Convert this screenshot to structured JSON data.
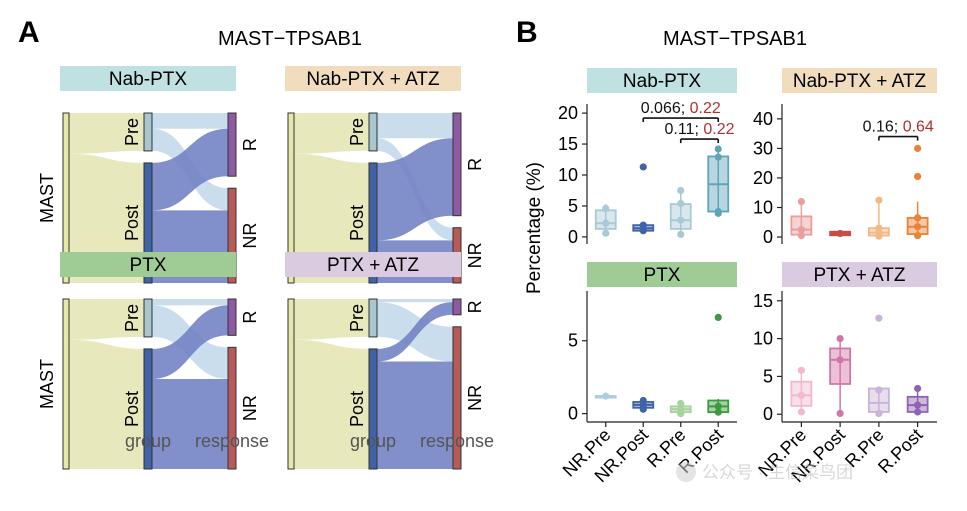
{
  "figure": {
    "panel_a_letter": "A",
    "panel_b_letter": "B",
    "panel_a_title": "MAST−TPSAB1",
    "panel_b_title": "MAST−TPSAB1",
    "watermark": "公众号 · 生信菜鸟团"
  },
  "colors": {
    "nabptx": "#bfe1e2",
    "nabptx_atz": "#f1ddbe",
    "ptx": "#9fcc94",
    "ptx_atz": "#dacbe0",
    "mast_node": "#e6e8a8",
    "pre_node": "#a9c6cf",
    "post_node": "#3f63a6",
    "r_node": "#8d5aa3",
    "nr_node": "#b85a58",
    "flow_mast": "#e5e6b6",
    "flow_pre": "#c4d9ea",
    "flow_post": "#7383c4",
    "pval_black": "#111111",
    "pval_red": "#b0302f"
  },
  "chart_data": [
    {
      "type": "sankey",
      "title": "Nab-PTX",
      "axes": [
        "group",
        "response"
      ],
      "source_label": "MAST",
      "group_nodes": [
        {
          "label": "Pre",
          "size": 0.24
        },
        {
          "label": "Post",
          "size": 0.76
        }
      ],
      "response_nodes": [
        {
          "label": "R",
          "size": 0.4
        },
        {
          "label": "NR",
          "size": 0.6
        }
      ],
      "flows": [
        {
          "from": "Pre",
          "to": "R",
          "value": 0.1
        },
        {
          "from": "Pre",
          "to": "NR",
          "value": 0.14
        },
        {
          "from": "Post",
          "to": "R",
          "value": 0.3
        },
        {
          "from": "Post",
          "to": "NR",
          "value": 0.46
        }
      ]
    },
    {
      "type": "sankey",
      "title": "Nab-PTX + ATZ",
      "axes": [
        "group",
        "response"
      ],
      "source_label": "MAST",
      "group_nodes": [
        {
          "label": "Pre",
          "size": 0.24
        },
        {
          "label": "Post",
          "size": 0.76
        }
      ],
      "response_nodes": [
        {
          "label": "R",
          "size": 0.65
        },
        {
          "label": "NR",
          "size": 0.35
        }
      ],
      "flows": [
        {
          "from": "Pre",
          "to": "R",
          "value": 0.16
        },
        {
          "from": "Pre",
          "to": "NR",
          "value": 0.08
        },
        {
          "from": "Post",
          "to": "R",
          "value": 0.49
        },
        {
          "from": "Post",
          "to": "NR",
          "value": 0.27
        }
      ]
    },
    {
      "type": "sankey",
      "title": "PTX",
      "axes": [
        "group",
        "response"
      ],
      "source_label": "MAST",
      "group_nodes": [
        {
          "label": "Pre",
          "size": 0.24
        },
        {
          "label": "Post",
          "size": 0.76
        }
      ],
      "response_nodes": [
        {
          "label": "R",
          "size": 0.23
        },
        {
          "label": "NR",
          "size": 0.77
        }
      ],
      "flows": [
        {
          "from": "Pre",
          "to": "R",
          "value": 0.04
        },
        {
          "from": "Pre",
          "to": "NR",
          "value": 0.2
        },
        {
          "from": "Post",
          "to": "R",
          "value": 0.19
        },
        {
          "from": "Post",
          "to": "NR",
          "value": 0.57
        }
      ]
    },
    {
      "type": "sankey",
      "title": "PTX + ATZ",
      "axes": [
        "group",
        "response"
      ],
      "source_label": "MAST",
      "group_nodes": [
        {
          "label": "Pre",
          "size": 0.24
        },
        {
          "label": "Post",
          "size": 0.76
        }
      ],
      "response_nodes": [
        {
          "label": "R",
          "size": 0.1
        },
        {
          "label": "NR",
          "size": 0.9
        }
      ],
      "flows": [
        {
          "from": "Pre",
          "to": "R",
          "value": 0.02
        },
        {
          "from": "Pre",
          "to": "NR",
          "value": 0.22
        },
        {
          "from": "Post",
          "to": "R",
          "value": 0.08
        },
        {
          "from": "Post",
          "to": "NR",
          "value": 0.68
        }
      ]
    },
    {
      "type": "box",
      "title": "Nab-PTX",
      "ylabel": "Percentage (%)",
      "categories": [
        "NR.Pre",
        "NR.Post",
        "R.Pre",
        "R.Post"
      ],
      "ylim": [
        -0.5,
        20.5
      ],
      "yticks": [
        0,
        5,
        10,
        15,
        20
      ],
      "boxes": [
        {
          "q1": 1.3,
          "median": 2.2,
          "q3": 4.3,
          "min": 0.6,
          "max": 5.3,
          "points": [
            0.6,
            2.2,
            4.6
          ],
          "color": "#a9c9d6"
        },
        {
          "q1": 1.0,
          "median": 1.4,
          "q3": 1.9,
          "min": 0.9,
          "max": 2.0,
          "points": [
            1.0,
            1.9,
            11.3
          ],
          "color": "#3f63a6"
        },
        {
          "q1": 1.3,
          "median": 2.7,
          "q3": 5.3,
          "min": 0.4,
          "max": 7.5,
          "points": [
            0.4,
            2.7,
            5.4,
            7.5
          ],
          "color": "#a9c9d6"
        },
        {
          "q1": 4.1,
          "median": 8.5,
          "q3": 13.0,
          "min": 3.8,
          "max": 14.2,
          "points": [
            3.8,
            4.1,
            12.9,
            14.2
          ],
          "color": "#5fa5b8"
        }
      ],
      "comparisons": [
        {
          "from": "NR.Post",
          "to": "R.Post",
          "y": 19.2,
          "p_left": "0.066;",
          "p_right": "0.22"
        },
        {
          "from": "R.Pre",
          "to": "R.Post",
          "y": 15.8,
          "p_left": "0.11;",
          "p_right": "0.22"
        }
      ]
    },
    {
      "type": "box",
      "title": "Nab-PTX + ATZ",
      "ylabel": "",
      "categories": [
        "NR.Pre",
        "NR.Post",
        "R.Pre",
        "R.Post"
      ],
      "ylim": [
        -1,
        43
      ],
      "yticks": [
        0,
        10,
        20,
        30,
        40
      ],
      "boxes": [
        {
          "q1": 0.8,
          "median": 2.5,
          "q3": 7.0,
          "min": 0.5,
          "max": 12.0,
          "points": [
            0.5,
            2.5,
            12.0
          ],
          "color": "#e9a09c"
        },
        {
          "q1": 0.6,
          "median": 1.2,
          "q3": 1.8,
          "min": 0.6,
          "max": 1.8,
          "points": [
            1.2
          ],
          "color": "#c94c47"
        },
        {
          "q1": 0.5,
          "median": 1.5,
          "q3": 3.0,
          "min": 0.2,
          "max": 12.5,
          "points": [
            0.3,
            1.5,
            3.0,
            12.5
          ],
          "color": "#f1b984"
        },
        {
          "q1": 1.0,
          "median": 3.5,
          "q3": 6.5,
          "min": 0.2,
          "max": 12.0,
          "points": [
            0.5,
            3.5,
            6.5,
            20.5,
            30.0
          ],
          "color": "#e9833a"
        }
      ],
      "comparisons": [
        {
          "from": "R.Pre",
          "to": "R.Post",
          "y": 34.0,
          "p_left": "0.16;",
          "p_right": "0.64"
        }
      ]
    },
    {
      "type": "box",
      "title": "PTX",
      "ylabel": "",
      "categories": [
        "NR.Pre",
        "NR.Post",
        "R.Pre",
        "R.Post"
      ],
      "ylim": [
        -0.3,
        8.0
      ],
      "yticks": [
        0,
        5
      ],
      "boxes": [
        {
          "q1": 1.2,
          "median": 1.2,
          "q3": 1.2,
          "min": 1.2,
          "max": 1.2,
          "points": [
            1.2
          ],
          "color": "#a9cfe0"
        },
        {
          "q1": 0.4,
          "median": 0.6,
          "q3": 0.8,
          "min": 0.3,
          "max": 1.0,
          "points": [
            0.3,
            0.6,
            0.9
          ],
          "color": "#3f63a6"
        },
        {
          "q1": 0.1,
          "median": 0.3,
          "q3": 0.5,
          "min": 0.0,
          "max": 0.7,
          "points": [
            0.0,
            0.3,
            0.7
          ],
          "color": "#a6d39e"
        },
        {
          "q1": 0.1,
          "median": 0.5,
          "q3": 0.9,
          "min": 0.0,
          "max": 1.0,
          "points": [
            0.1,
            0.5,
            6.6
          ],
          "color": "#3e9a41"
        }
      ],
      "comparisons": []
    },
    {
      "type": "box",
      "title": "PTX + ATZ",
      "ylabel": "",
      "categories": [
        "NR.Pre",
        "NR.Post",
        "R.Pre",
        "R.Post"
      ],
      "ylim": [
        -0.5,
        15.5
      ],
      "yticks": [
        0,
        5,
        10,
        15
      ],
      "boxes": [
        {
          "q1": 1.1,
          "median": 2.5,
          "q3": 4.3,
          "min": 0.3,
          "max": 5.8,
          "points": [
            0.3,
            2.5,
            5.8
          ],
          "color": "#f1b8cf"
        },
        {
          "q1": 4.0,
          "median": 7.2,
          "q3": 8.7,
          "min": 0.1,
          "max": 10.0,
          "points": [
            0.1,
            7.2,
            10.0
          ],
          "color": "#d276a9"
        },
        {
          "q1": 0.3,
          "median": 1.5,
          "q3": 3.4,
          "min": 0.1,
          "max": 3.5,
          "points": [
            0.1,
            3.2,
            12.7
          ],
          "color": "#c9b3d7"
        },
        {
          "q1": 0.3,
          "median": 1.2,
          "q3": 2.3,
          "min": 0.1,
          "max": 3.5,
          "points": [
            0.3,
            1.2,
            3.4
          ],
          "color": "#8f63b3"
        }
      ],
      "comparisons": []
    }
  ]
}
